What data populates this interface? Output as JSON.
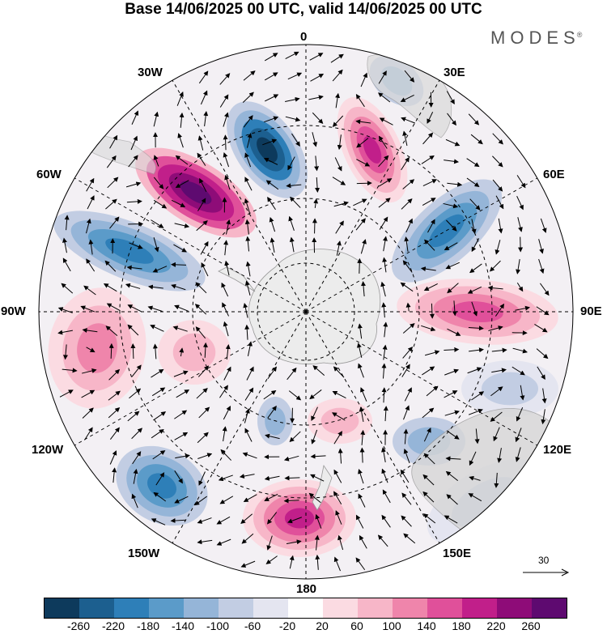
{
  "title": "Base 14/06/2025 00 UTC, valid 14/06/2025 00 UTC",
  "brand": "MODES",
  "brand_mark": "®",
  "meridian_labels": {
    "m0": "0",
    "m30e": "30E",
    "m60e": "60E",
    "m90e": "90E",
    "m120e": "120E",
    "m150e": "150E",
    "m180": "180",
    "m150w": "150W",
    "m120w": "120W",
    "m90w": "90W",
    "m60w": "60W",
    "m30w": "30W"
  },
  "wind_scale_label": "30",
  "colorbar": {
    "colors": [
      "#0d3a5c",
      "#1c5f8f",
      "#2e7fb8",
      "#5b9bc9",
      "#95b5d8",
      "#c2cde3",
      "#e4e5f0",
      "#ffffff",
      "#fbdbe2",
      "#f7b6c8",
      "#ef85ab",
      "#e0509a",
      "#c11f8a",
      "#8e0c78",
      "#5e0a70"
    ],
    "ticks": [
      "-260",
      "-220",
      "-180",
      "-140",
      "-100",
      "-60",
      "-20",
      "20",
      "60",
      "100",
      "140",
      "180",
      "220",
      "260"
    ]
  },
  "projection": "south-polar-stereographic",
  "field": "geopotential-height-anomaly"
}
